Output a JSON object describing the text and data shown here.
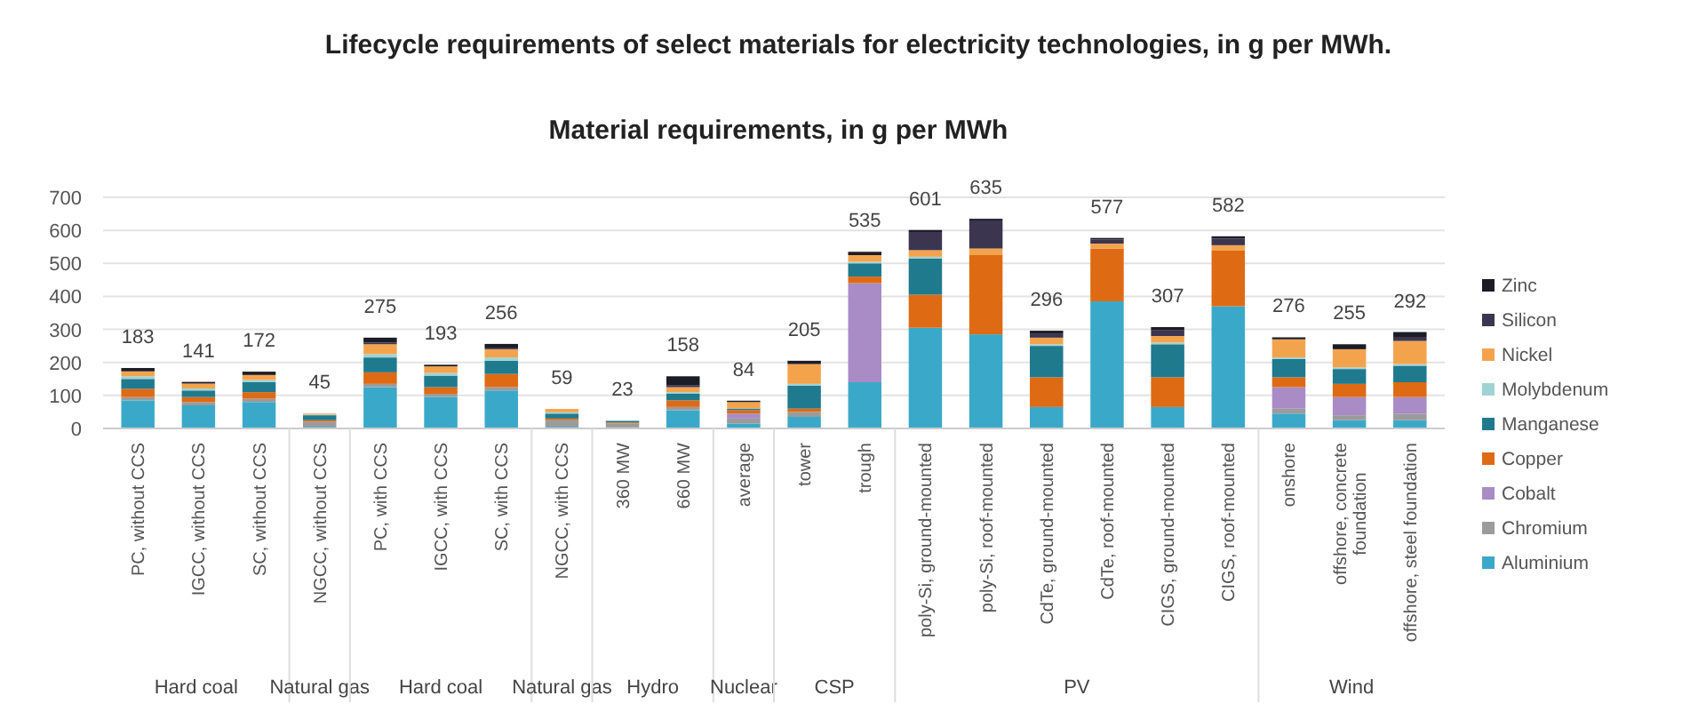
{
  "chart_data": {
    "type": "bar",
    "stacked": true,
    "title": "Lifecycle requirements of select materials for electricity technologies, in g per MWh.",
    "subtitle": "Material requirements, in g per MWh",
    "categories": [
      "PC, without CCS",
      "IGCC, without CCS",
      "SC, without CCS",
      "NGCC, without CCS",
      "PC, with CCS",
      "IGCC, with CCS",
      "SC, with CCS",
      "NGCC, with CCS",
      "360 MW",
      "660 MW",
      "average",
      "tower",
      "trough",
      "poly-Si, ground-mounted",
      "poly-Si, roof-mounted",
      "CdTe, ground-mounted",
      "CdTe, roof-mounted",
      "CIGS, ground-mounted",
      "CIGS, roof-mounted",
      "onshore",
      "offshore, concrete foundation",
      "offshore, steel foundation"
    ],
    "series": [
      {
        "name": "Aluminium",
        "color": "#3aa9c9",
        "values": [
          85,
          70,
          80,
          5,
          125,
          95,
          115,
          5,
          3,
          55,
          15,
          35,
          140,
          305,
          285,
          65,
          385,
          65,
          370,
          45,
          25,
          25
        ]
      },
      {
        "name": "Chromium",
        "color": "#9b9b9b",
        "values": [
          10,
          10,
          10,
          15,
          10,
          10,
          10,
          20,
          12,
          10,
          15,
          15,
          0,
          0,
          0,
          0,
          0,
          0,
          0,
          15,
          15,
          20
        ]
      },
      {
        "name": "Cobalt",
        "color": "#a98bc6",
        "values": [
          0,
          0,
          0,
          0,
          0,
          0,
          0,
          0,
          0,
          0,
          15,
          0,
          300,
          0,
          0,
          0,
          0,
          0,
          0,
          65,
          55,
          50
        ]
      },
      {
        "name": "Copper",
        "color": "#de6a14",
        "values": [
          25,
          15,
          20,
          5,
          35,
          20,
          40,
          5,
          3,
          20,
          10,
          10,
          20,
          100,
          240,
          90,
          160,
          90,
          170,
          30,
          40,
          45
        ]
      },
      {
        "name": "Manganese",
        "color": "#1f7a8e",
        "values": [
          30,
          20,
          30,
          15,
          45,
          35,
          40,
          15,
          5,
          20,
          5,
          70,
          40,
          110,
          0,
          95,
          0,
          100,
          0,
          55,
          45,
          50
        ]
      },
      {
        "name": "Molybdenum",
        "color": "#9fd3d6",
        "values": [
          8,
          6,
          7,
          2,
          10,
          8,
          10,
          4,
          0,
          5,
          0,
          5,
          5,
          5,
          0,
          5,
          0,
          5,
          0,
          5,
          5,
          5
        ]
      },
      {
        "name": "Nickel",
        "color": "#f4a34d",
        "values": [
          15,
          15,
          15,
          3,
          30,
          20,
          25,
          10,
          0,
          15,
          20,
          60,
          20,
          20,
          20,
          20,
          15,
          20,
          15,
          55,
          55,
          70
        ]
      },
      {
        "name": "Silicon",
        "color": "#3b3550",
        "values": [
          0,
          0,
          0,
          0,
          5,
          0,
          5,
          0,
          0,
          5,
          0,
          0,
          0,
          55,
          85,
          11,
          12,
          17,
          20,
          0,
          0,
          10
        ]
      },
      {
        "name": "Zinc",
        "color": "#1c1c26",
        "values": [
          10,
          5,
          10,
          0,
          15,
          5,
          11,
          0,
          0,
          28,
          4,
          10,
          10,
          6,
          5,
          10,
          5,
          10,
          7,
          6,
          15,
          17
        ]
      }
    ],
    "totals": [
      "183",
      "141",
      "172",
      "45",
      "275",
      "193",
      "256",
      "59",
      "23",
      "158",
      "84",
      "205",
      "535",
      "601",
      "635",
      "296",
      "577",
      "307",
      "582",
      "276",
      "255",
      "292"
    ],
    "annotations": [
      "Hard coal",
      "Natural gas",
      "Hard coal",
      "Natural gas",
      "Hydro",
      "Nuclear",
      "CSP",
      "PV",
      "Wind"
    ],
    "ylim": [
      0,
      700
    ],
    "yticks": [
      0,
      100,
      200,
      300,
      400,
      500,
      600,
      700
    ],
    "grid": "y",
    "legend": "right"
  }
}
